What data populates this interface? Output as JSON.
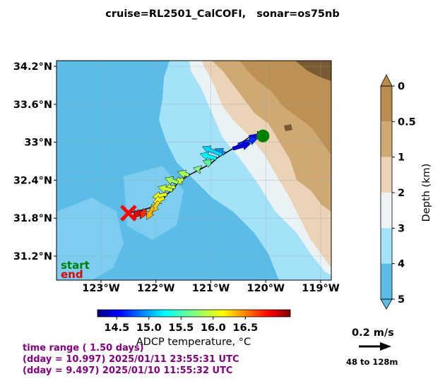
{
  "title": "cruise=RL2501_CalCOFI,   sonar=os75nb",
  "map": {
    "lon_ticks": [
      {
        "value": -123,
        "label": "123°W"
      },
      {
        "value": -122,
        "label": "122°W"
      },
      {
        "value": -121,
        "label": "121°W"
      },
      {
        "value": -120,
        "label": "120°W"
      },
      {
        "value": -119,
        "label": "119°W"
      }
    ],
    "lat_ticks": [
      {
        "value": 34.2,
        "label": "34.2°N"
      },
      {
        "value": 33.6,
        "label": "33.6°N"
      },
      {
        "value": 33.0,
        "label": "33°N"
      },
      {
        "value": 32.4,
        "label": "32.4°N"
      },
      {
        "value": 31.8,
        "label": "31.8°N"
      },
      {
        "value": 31.2,
        "label": "31.2°N"
      }
    ],
    "start_label": "start",
    "end_label": "end",
    "colors": {
      "deep_ocean": "#5bbce8",
      "mid_ocean": "#a4e2fa",
      "shelf": "#eaf2f5",
      "land_low": "#ead3b6",
      "land_mid": "#cfa874",
      "land_high": "#b98d4e",
      "mountains": "#7a5a32"
    }
  },
  "depth_colorbar": {
    "title": "Depth (km)",
    "tick_labels": [
      "0",
      "0.5",
      "1",
      "2",
      "3",
      "4",
      "5"
    ],
    "colors": [
      "#b98d4e",
      "#cfa874",
      "#ead3b6",
      "#eef3f6",
      "#a4e2fa",
      "#5bbce8"
    ]
  },
  "temp_colorbar": {
    "title": "ADCP temperature, °C",
    "tick_labels": [
      "14.5",
      "15.0",
      "15.5",
      "16.0",
      "16.5"
    ],
    "tick_values": [
      14.5,
      15.0,
      15.5,
      16.0,
      16.5
    ],
    "range": [
      14.2,
      17.2
    ],
    "colormap": "jet"
  },
  "chart_data": {
    "type": "vector_field",
    "track_start": {
      "lon": -120.05,
      "lat": 33.1
    },
    "track_end": {
      "lon": -122.5,
      "lat": 31.88
    },
    "vectors": [
      {
        "lon": -120.3,
        "lat": 33.08,
        "u": 0.1,
        "v": 0.02,
        "temp": 14.6
      },
      {
        "lon": -120.5,
        "lat": 32.96,
        "u": 0.12,
        "v": 0.04,
        "temp": 14.7
      },
      {
        "lon": -120.6,
        "lat": 32.9,
        "u": 0.11,
        "v": 0.03,
        "temp": 14.5
      },
      {
        "lon": -120.75,
        "lat": 32.82,
        "u": -0.06,
        "v": 0.03,
        "temp": 15.0
      },
      {
        "lon": -120.8,
        "lat": 32.8,
        "u": -0.12,
        "v": 0.05,
        "temp": 15.2
      },
      {
        "lon": -120.9,
        "lat": 32.74,
        "u": -0.1,
        "v": 0.03,
        "temp": 15.3
      },
      {
        "lon": -121.0,
        "lat": 32.66,
        "u": -0.05,
        "v": 0.02,
        "temp": 15.6
      },
      {
        "lon": -121.2,
        "lat": 32.57,
        "u": -0.04,
        "v": 0.01,
        "temp": 15.7
      },
      {
        "lon": -121.4,
        "lat": 32.48,
        "u": -0.07,
        "v": 0.02,
        "temp": 15.8
      },
      {
        "lon": -121.5,
        "lat": 32.42,
        "u": -0.06,
        "v": -0.03,
        "temp": 15.9
      },
      {
        "lon": -121.6,
        "lat": 32.36,
        "u": -0.08,
        "v": 0.03,
        "temp": 15.8
      },
      {
        "lon": -121.65,
        "lat": 32.3,
        "u": -0.07,
        "v": -0.02,
        "temp": 15.9
      },
      {
        "lon": -121.7,
        "lat": 32.24,
        "u": -0.09,
        "v": 0.02,
        "temp": 15.9
      },
      {
        "lon": -121.8,
        "lat": 32.18,
        "u": -0.09,
        "v": -0.02,
        "temp": 16.0
      },
      {
        "lon": -121.85,
        "lat": 32.12,
        "u": -0.07,
        "v": -0.03,
        "temp": 16.1
      },
      {
        "lon": -121.95,
        "lat": 32.06,
        "u": -0.05,
        "v": -0.07,
        "temp": 16.2
      },
      {
        "lon": -122.05,
        "lat": 31.98,
        "u": -0.04,
        "v": -0.08,
        "temp": 16.3
      },
      {
        "lon": -122.2,
        "lat": 31.94,
        "u": -0.03,
        "v": -0.06,
        "temp": 16.7
      },
      {
        "lon": -122.3,
        "lat": 31.92,
        "u": -0.04,
        "v": -0.05,
        "temp": 16.9
      }
    ]
  },
  "scale_arrow": {
    "label": "0.2 m/s",
    "depth_range": "48 to 128m"
  },
  "time_info": {
    "line1": "time range ( 1.50 days)",
    "line2": "(dday = 10.997) 2025/01/11 23:55:31 UTC",
    "line3": "(dday = 9.497) 2025/01/10 11:55:32 UTC"
  }
}
